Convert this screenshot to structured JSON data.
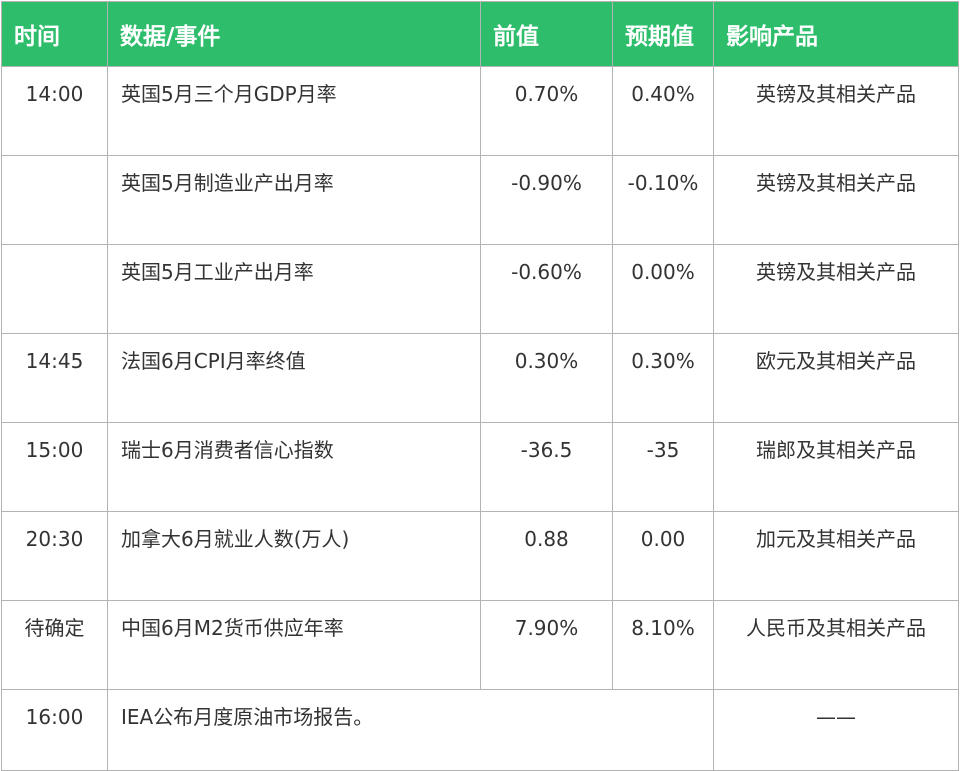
{
  "header": {
    "time": "时间",
    "event": "数据/事件",
    "previous": "前值",
    "expected": "预期值",
    "impact": "影响产品"
  },
  "rows": [
    {
      "time": "14:00",
      "event": "英国5月三个月GDP月率",
      "previous": "0.70%",
      "expected": "0.40%",
      "impact": "英镑及其相关产品"
    },
    {
      "time": "",
      "event": "英国5月制造业产出月率",
      "previous": "-0.90%",
      "expected": "-0.10%",
      "impact": "英镑及其相关产品"
    },
    {
      "time": "",
      "event": "英国5月工业产出月率",
      "previous": "-0.60%",
      "expected": "0.00%",
      "impact": "英镑及其相关产品"
    },
    {
      "time": "14:45",
      "event": "法国6月CPI月率终值",
      "previous": "0.30%",
      "expected": "0.30%",
      "impact": "欧元及其相关产品"
    },
    {
      "time": "15:00",
      "event": "瑞士6月消费者信心指数",
      "previous": "-36.5",
      "expected": "-35",
      "impact": "瑞郎及其相关产品"
    },
    {
      "time": "20:30",
      "event": "加拿大6月就业人数(万人)",
      "previous": "0.88",
      "expected": "0.00",
      "impact": "加元及其相关产品"
    },
    {
      "time": "待确定",
      "event": "中国6月M2货币供应年率",
      "previous": "7.90%",
      "expected": "8.10%",
      "impact": "人民币及其相关产品"
    }
  ],
  "last_row": {
    "time": "16:00",
    "event": "IEA公布月度原油市场报告。",
    "impact": "——"
  },
  "colors": {
    "header_bg": "#2dbd6b",
    "header_text": "#ffffff",
    "border": "#b3b3b3",
    "text": "#333333"
  }
}
